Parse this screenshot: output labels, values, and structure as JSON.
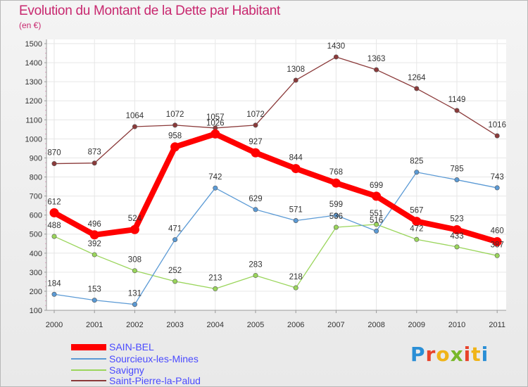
{
  "title": "Evolution du Montant de la Dette par Habitant",
  "subtitle": "(en €)",
  "logo": "Proxiti",
  "logo_colors": [
    "#2a8fd6",
    "#e8432b",
    "#f0b418",
    "#78b82a",
    "#e8432b",
    "#f0b418",
    "#2a8fd6"
  ],
  "chart_data": {
    "type": "line",
    "title": "Evolution du Montant de la Dette par Habitant",
    "subtitle": "(en €)",
    "xlabel": "",
    "ylabel": "",
    "x": [
      "2000",
      "2001",
      "2002",
      "2003",
      "2004",
      "2005",
      "2006",
      "2007",
      "2008",
      "2009",
      "2010",
      "2011"
    ],
    "yticks": [
      "1500",
      "1400",
      "1300",
      "1200",
      "1100",
      "1000",
      "900",
      "800",
      "700",
      "600",
      "500",
      "400",
      "300",
      "200",
      "100"
    ],
    "ylim": [
      100,
      1500
    ],
    "grid": true,
    "legend_position": "bottom-left",
    "series": [
      {
        "name": "SAIN-BEL",
        "color": "#ff0000",
        "values": [
          612,
          496,
          524,
          958,
          1026,
          927,
          844,
          768,
          699,
          567,
          523,
          460
        ]
      },
      {
        "name": "Sourcieux-les-Mines",
        "color": "#5b9ad5",
        "values": [
          184,
          153,
          131,
          471,
          742,
          629,
          571,
          599,
          516,
          825,
          785,
          743
        ]
      },
      {
        "name": "Savigny",
        "color": "#9ad55b",
        "values": [
          488,
          392,
          308,
          252,
          213,
          283,
          218,
          536,
          551,
          472,
          433,
          387
        ]
      },
      {
        "name": "Saint-Pierre-la-Palud",
        "color": "#8b3a3a",
        "values": [
          870,
          873,
          1064,
          1072,
          1057,
          1072,
          1308,
          1430,
          1363,
          1264,
          1149,
          1016
        ]
      }
    ],
    "point_labels": [
      [
        "612",
        "496",
        "524",
        "958",
        "1026",
        "927",
        "844",
        "768",
        "699",
        "567",
        "523",
        "460"
      ],
      [
        "184",
        "153",
        "131",
        "471",
        "742",
        "629",
        "571",
        "599",
        "516",
        "825",
        "785",
        "743"
      ],
      [
        "488",
        "392",
        "308",
        "252",
        "213",
        "283",
        "218",
        "536",
        "551",
        "472",
        "433",
        "387"
      ],
      [
        "870",
        "873",
        "1064",
        "1072",
        "1057",
        "1072",
        "1308",
        "1430",
        "1363",
        "1264",
        "1149",
        "1016"
      ]
    ]
  }
}
